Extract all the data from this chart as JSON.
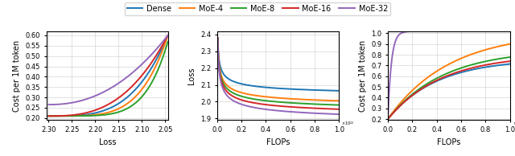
{
  "legend_labels": [
    "Dense",
    "MoE-4",
    "MoE-8",
    "MoE-16",
    "MoE-32"
  ],
  "colors": {
    "Dense": "#1f77b4",
    "MoE-4": "#ff7f0e",
    "MoE-8": "#2ca02c",
    "MoE-16": "#d62728",
    "MoE-32": "#9467bd"
  },
  "plot1": {
    "xlabel": "Loss",
    "ylabel": "Cost per 1M token",
    "xlim_left": 2.305,
    "xlim_right": 2.043,
    "ylim": [
      0.19,
      0.62
    ],
    "yticks": [
      0.2,
      0.25,
      0.3,
      0.35,
      0.4,
      0.45,
      0.5,
      0.55,
      0.6
    ],
    "xticks": [
      2.3,
      2.25,
      2.2,
      2.15,
      2.1,
      2.05
    ]
  },
  "plot2": {
    "xlabel": "FLOPs",
    "ylabel": "Loss",
    "xlim": [
      0.0,
      1.0
    ],
    "ylim": [
      1.89,
      2.42
    ],
    "yticks": [
      1.9,
      2.0,
      2.1,
      2.2,
      2.3,
      2.4
    ],
    "xticks": [
      0.0,
      0.2,
      0.4,
      0.6,
      0.8,
      1.0
    ]
  },
  "plot3": {
    "xlabel": "FLOPs",
    "ylabel": "Cost per 1M token",
    "xlim": [
      0.0,
      1.0
    ],
    "ylim": [
      0.19,
      1.02
    ],
    "yticks": [
      0.2,
      0.3,
      0.4,
      0.5,
      0.6,
      0.7,
      0.8,
      0.9,
      1.0
    ],
    "xticks": [
      0.0,
      0.2,
      0.4,
      0.6,
      0.8,
      1.0
    ]
  },
  "linewidth": 1.4
}
